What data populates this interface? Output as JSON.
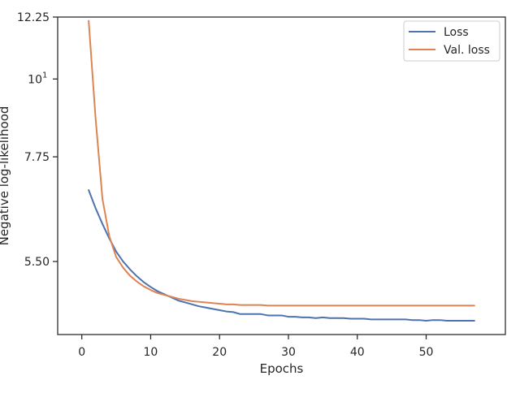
{
  "chart_data": {
    "type": "line",
    "title": "",
    "xlabel": "Epochs",
    "ylabel": "Negative log-likelihood",
    "y_scale": "log",
    "xlim": [
      -3.5,
      61.5
    ],
    "ylim": [
      4.33,
      12.25
    ],
    "x_ticks": [
      0,
      10,
      20,
      30,
      40,
      50
    ],
    "y_ticks": [
      {
        "value": 12.25,
        "label": "12.25"
      },
      {
        "value": 10,
        "label": "10",
        "superscript": "1"
      },
      {
        "value": 7.75,
        "label": "7.75"
      },
      {
        "value": 5.5,
        "label": "5.50"
      }
    ],
    "grid": false,
    "legend": {
      "position": "top-right"
    },
    "series": [
      {
        "name": "Loss",
        "color": "#4c72b0",
        "x": [
          1,
          2,
          3,
          4,
          5,
          6,
          7,
          8,
          9,
          10,
          11,
          12,
          13,
          14,
          15,
          16,
          17,
          18,
          19,
          20,
          21,
          22,
          23,
          24,
          25,
          26,
          27,
          28,
          29,
          30,
          31,
          32,
          33,
          34,
          35,
          36,
          37,
          38,
          39,
          40,
          41,
          42,
          43,
          44,
          45,
          46,
          47,
          48,
          49,
          50,
          51,
          52,
          53,
          54,
          55,
          56,
          57
        ],
        "values": [
          6.95,
          6.55,
          6.22,
          5.93,
          5.68,
          5.5,
          5.36,
          5.24,
          5.14,
          5.06,
          4.99,
          4.94,
          4.89,
          4.84,
          4.81,
          4.78,
          4.75,
          4.73,
          4.71,
          4.69,
          4.67,
          4.66,
          4.63,
          4.63,
          4.63,
          4.63,
          4.61,
          4.61,
          4.61,
          4.59,
          4.59,
          4.58,
          4.58,
          4.57,
          4.58,
          4.57,
          4.57,
          4.57,
          4.56,
          4.56,
          4.56,
          4.55,
          4.55,
          4.55,
          4.55,
          4.55,
          4.55,
          4.54,
          4.54,
          4.53,
          4.54,
          4.54,
          4.53,
          4.53,
          4.53,
          4.53,
          4.53
        ]
      },
      {
        "name": "Val. loss",
        "color": "#dd8452",
        "x": [
          1,
          2,
          3,
          4,
          5,
          6,
          7,
          8,
          9,
          10,
          11,
          12,
          13,
          14,
          15,
          16,
          17,
          18,
          19,
          20,
          21,
          22,
          23,
          24,
          25,
          26,
          27,
          28,
          29,
          30,
          31,
          32,
          33,
          34,
          35,
          36,
          37,
          38,
          39,
          40,
          41,
          42,
          43,
          44,
          45,
          46,
          47,
          48,
          49,
          50,
          51,
          52,
          53,
          54,
          55,
          56,
          57
        ],
        "values": [
          12.1,
          8.8,
          6.75,
          5.97,
          5.58,
          5.39,
          5.25,
          5.15,
          5.07,
          5.01,
          4.96,
          4.93,
          4.9,
          4.87,
          4.85,
          4.83,
          4.82,
          4.81,
          4.8,
          4.79,
          4.78,
          4.78,
          4.77,
          4.77,
          4.77,
          4.77,
          4.76,
          4.76,
          4.76,
          4.76,
          4.76,
          4.76,
          4.76,
          4.76,
          4.76,
          4.76,
          4.76,
          4.76,
          4.76,
          4.76,
          4.76,
          4.76,
          4.76,
          4.76,
          4.76,
          4.76,
          4.76,
          4.76,
          4.76,
          4.76,
          4.76,
          4.76,
          4.76,
          4.76,
          4.76,
          4.76,
          4.76
        ]
      }
    ]
  }
}
